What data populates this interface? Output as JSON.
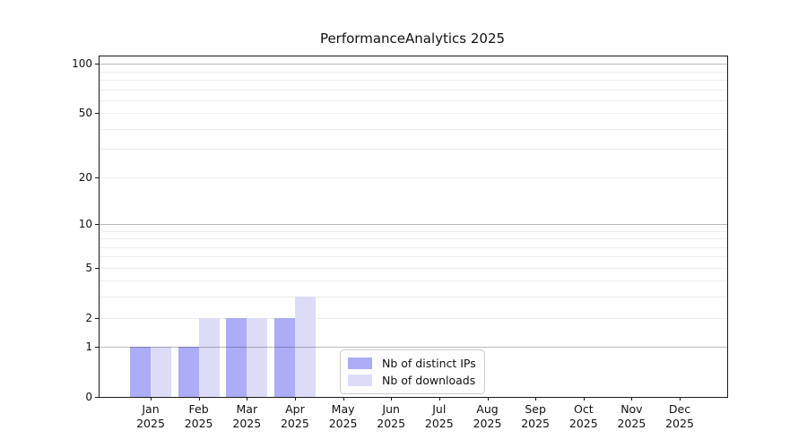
{
  "chart_data": {
    "type": "bar",
    "title": "PerformanceAnalytics 2025",
    "x_categories": [
      {
        "month": "Jan",
        "year": "2025"
      },
      {
        "month": "Feb",
        "year": "2025"
      },
      {
        "month": "Mar",
        "year": "2025"
      },
      {
        "month": "Apr",
        "year": "2025"
      },
      {
        "month": "May",
        "year": "2025"
      },
      {
        "month": "Jun",
        "year": "2025"
      },
      {
        "month": "Jul",
        "year": "2025"
      },
      {
        "month": "Aug",
        "year": "2025"
      },
      {
        "month": "Sep",
        "year": "2025"
      },
      {
        "month": "Oct",
        "year": "2025"
      },
      {
        "month": "Nov",
        "year": "2025"
      },
      {
        "month": "Dec",
        "year": "2025"
      }
    ],
    "series": [
      {
        "name": "Nb of distinct IPs",
        "color": "#acacf7",
        "values": [
          1,
          1,
          2,
          2,
          null,
          null,
          null,
          null,
          null,
          null,
          null,
          null
        ]
      },
      {
        "name": "Nb of downloads",
        "color": "#dcdcf9",
        "values": [
          1,
          2,
          2,
          3,
          null,
          null,
          null,
          null,
          null,
          null,
          null,
          null
        ]
      }
    ],
    "y_axis": {
      "scale": "log10(1+value)",
      "ticks": [
        0,
        1,
        2,
        5,
        10,
        20,
        50,
        100
      ],
      "range": [
        0,
        100
      ]
    },
    "gridlines": {
      "major": [
        1,
        10,
        100
      ],
      "minor": [
        2,
        3,
        4,
        5,
        6,
        7,
        8,
        9,
        20,
        30,
        40,
        50,
        60,
        70,
        80,
        90
      ]
    },
    "legend": {
      "position": "lower-center"
    },
    "layout": {
      "grid": "on",
      "legend_position": "lower-center"
    }
  }
}
